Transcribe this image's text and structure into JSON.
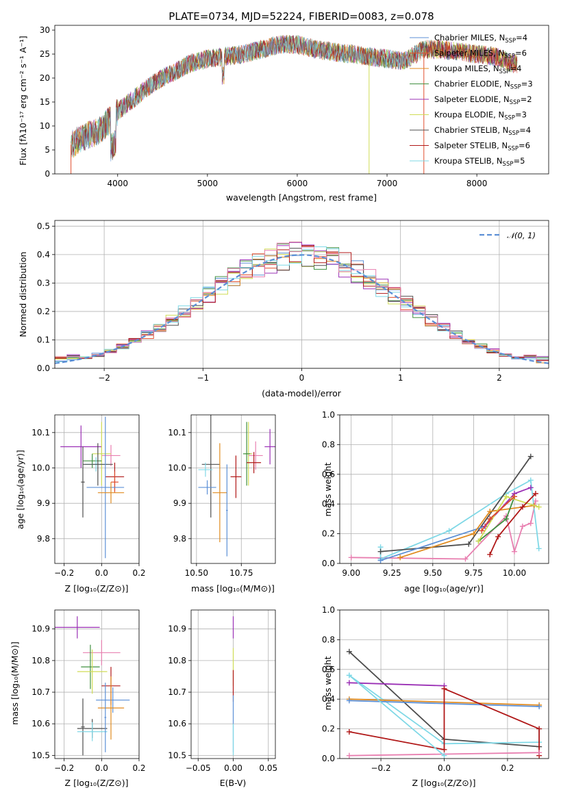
{
  "colors": {
    "chabrier_miles": "#5b8fd6",
    "salpeter_miles": "#e04e2e",
    "kroupa_miles": "#e08a1e",
    "chabrier_elodie": "#3f8f3f",
    "salpeter_elodie": "#9a2fb5",
    "kroupa_elodie": "#cfdc54",
    "chabrier_stelib": "#4d4d4d",
    "salpeter_stelib": "#b01717",
    "kroupa_stelib": "#7fd8e6",
    "pink": "#e87fb0",
    "normal": "#5b8fd6"
  },
  "chart_data": [
    {
      "id": "spectrum",
      "type": "line",
      "title": "PLATE=0734, MJD=52224, FIBERID=0083, z=0.078",
      "xlabel": "wavelength [Angstrom, rest frame]",
      "ylabel": "Flux [fλ10⁻¹⁷ erg cm⁻² s⁻¹ A⁻¹]",
      "xlim": [
        3300,
        8800
      ],
      "ylim": [
        0,
        31
      ],
      "xticks": [
        4000,
        5000,
        6000,
        7000,
        8000
      ],
      "yticks": [
        0,
        5,
        10,
        15,
        20,
        25,
        30
      ],
      "legend_position": "upper-right",
      "continuum": [
        [
          3480,
          6
        ],
        [
          3600,
          7.5
        ],
        [
          3800,
          9
        ],
        [
          4000,
          13
        ],
        [
          4200,
          16
        ],
        [
          4400,
          19
        ],
        [
          4600,
          21
        ],
        [
          4800,
          23
        ],
        [
          5000,
          24
        ],
        [
          5200,
          24.5
        ],
        [
          5400,
          25
        ],
        [
          5600,
          26
        ],
        [
          5800,
          27
        ],
        [
          6000,
          27
        ],
        [
          6200,
          26
        ],
        [
          6400,
          25.5
        ],
        [
          6600,
          25
        ],
        [
          6800,
          24.5
        ],
        [
          7000,
          24
        ],
        [
          7200,
          23.5
        ],
        [
          7400,
          26
        ],
        [
          7600,
          26
        ],
        [
          7800,
          25.5
        ],
        [
          8000,
          25
        ],
        [
          8200,
          24.5
        ],
        [
          8400,
          23
        ]
      ],
      "series": [
        {
          "name": "Chabrier MILES, N",
          "sub": "SSP",
          "suffix": "=4",
          "color_key": "chabrier_miles"
        },
        {
          "name": "Salpeter MILES, N",
          "sub": "SSP",
          "suffix": "=6",
          "color_key": "salpeter_miles"
        },
        {
          "name": "Kroupa MILES, N",
          "sub": "SSP",
          "suffix": "=4",
          "color_key": "kroupa_miles"
        },
        {
          "name": "Chabrier ELODIE, N",
          "sub": "SSP",
          "suffix": "=3",
          "color_key": "chabrier_elodie"
        },
        {
          "name": "Salpeter ELODIE, N",
          "sub": "SSP",
          "suffix": "=2",
          "color_key": "salpeter_elodie"
        },
        {
          "name": "Kroupa ELODIE, N",
          "sub": "SSP",
          "suffix": "=3",
          "color_key": "kroupa_elodie"
        },
        {
          "name": "Chabrier STELIB, N",
          "sub": "SSP",
          "suffix": "=4",
          "color_key": "chabrier_stelib"
        },
        {
          "name": "Salpeter STELIB, N",
          "sub": "SSP",
          "suffix": "=6",
          "color_key": "salpeter_stelib"
        },
        {
          "name": "Kroupa STELIB, N",
          "sub": "SSP",
          "suffix": "=5",
          "color_key": "kroupa_stelib"
        }
      ]
    },
    {
      "id": "residuals",
      "type": "histogram",
      "xlabel": "(data-model)/error",
      "ylabel": "Normed distribution",
      "xlim": [
        -2.5,
        2.5
      ],
      "ylim": [
        0,
        0.52
      ],
      "xticks": [
        -2,
        -1,
        0,
        1,
        2
      ],
      "yticks": [
        0.0,
        0.1,
        0.2,
        0.3,
        0.4,
        0.5
      ],
      "grid": true,
      "legend": "𝒩(0, 1)",
      "legend_position": "upper-right",
      "bin_width": 0.125
    },
    {
      "id": "age_vs_z",
      "type": "errorbar",
      "xlabel": "Z [log₁₀(Z/Z⊙)]",
      "ylabel": "age  [log₁₀(age/yr)]",
      "xlim": [
        -0.25,
        0.2
      ],
      "ylim": [
        9.73,
        10.15
      ],
      "xticks": [
        -0.2,
        0.0,
        0.2
      ],
      "yticks": [
        9.8,
        9.9,
        10.0,
        10.1
      ],
      "grid": true,
      "points": [
        {
          "c": "salpeter_elodie",
          "x": -0.11,
          "xe": 0.11,
          "y": 10.06,
          "ye": 0.06
        },
        {
          "c": "pink",
          "x": 0.05,
          "xe": 0.05,
          "y": 10.035,
          "ye": 0.03
        },
        {
          "c": "kroupa_elodie",
          "x": 0.0,
          "xe": 0.05,
          "y": 10.04,
          "ye": 0.09
        },
        {
          "c": "chabrier_elodie",
          "x": -0.05,
          "xe": 0.05,
          "y": 10.02,
          "ye": 0.02
        },
        {
          "c": "kroupa_stelib",
          "x": -0.03,
          "xe": 0.06,
          "y": 10.01,
          "ye": 0.02
        },
        {
          "c": "chabrier_stelib",
          "x": -0.02,
          "xe": 0.08,
          "y": 10.01,
          "ye": 0.06
        },
        {
          "c": "chabrier_stelib",
          "x": -0.1,
          "xe": 0.01,
          "y": 9.96,
          "ye": 0.1
        },
        {
          "c": "salpeter_stelib",
          "x": 0.07,
          "xe": 0.05,
          "y": 9.975,
          "ye": 0.04
        },
        {
          "c": "salpeter_miles",
          "x": 0.07,
          "xe": 0.02,
          "y": 9.96,
          "ye": 0.03
        },
        {
          "c": "chabrier_miles",
          "x": 0.02,
          "xe": 0.1,
          "y": 9.945,
          "ye": 0.2
        },
        {
          "c": "kroupa_miles",
          "x": 0.05,
          "xe": 0.07,
          "y": 9.93,
          "ye": 0.03
        }
      ]
    },
    {
      "id": "age_vs_mass",
      "type": "errorbar",
      "xlabel": "mass [log₁₀(M/M⊙)]",
      "xlim": [
        10.47,
        10.94
      ],
      "ylim": [
        9.73,
        10.15
      ],
      "xticks": [
        10.5,
        10.75
      ],
      "yticks": [
        9.8,
        9.9,
        10.0,
        10.1
      ],
      "grid": true,
      "points": [
        {
          "c": "salpeter_elodie",
          "x": 10.91,
          "xe": 0.03,
          "y": 10.06,
          "ye": 0.05
        },
        {
          "c": "kroupa_elodie",
          "x": 10.79,
          "xe": 0.02,
          "y": 10.04,
          "ye": 0.09
        },
        {
          "c": "chabrier_elodie",
          "x": 10.78,
          "xe": 0.02,
          "y": 10.04,
          "ye": 0.09
        },
        {
          "c": "pink",
          "x": 10.83,
          "xe": 0.04,
          "y": 10.035,
          "ye": 0.04
        },
        {
          "c": "salpeter_stelib",
          "x": 10.82,
          "xe": 0.04,
          "y": 10.015,
          "ye": 0.03
        },
        {
          "c": "chabrier_stelib",
          "x": 10.58,
          "xe": 0.05,
          "y": 10.01,
          "ye": 0.15
        },
        {
          "c": "kroupa_stelib",
          "x": 10.55,
          "xe": 0.04,
          "y": 9.995,
          "ye": 0.02
        },
        {
          "c": "salpeter_stelib",
          "x": 10.72,
          "xe": 0.03,
          "y": 9.975,
          "ye": 0.06
        },
        {
          "c": "chabrier_miles",
          "x": 10.56,
          "xe": 0.05,
          "y": 9.945,
          "ye": 0.02
        },
        {
          "c": "kroupa_miles",
          "x": 10.63,
          "xe": 0.04,
          "y": 9.93,
          "ye": 0.14
        },
        {
          "c": "chabrier_miles",
          "x": 10.67,
          "xe": 0.005,
          "y": 9.88,
          "ye": 0.13
        }
      ]
    },
    {
      "id": "weight_vs_age",
      "type": "line",
      "xlabel": "age  [log₁₀(age/yr)]",
      "ylabel": "mass weight",
      "xlim": [
        8.93,
        10.21
      ],
      "ylim": [
        0,
        1.0
      ],
      "xticks": [
        9.0,
        9.25,
        9.5,
        9.75,
        10.0
      ],
      "yticks": [
        0.0,
        0.2,
        0.4,
        0.6,
        0.8,
        1.0
      ],
      "grid": true,
      "series": [
        {
          "c": "pink",
          "pts": [
            [
              9.0,
              0.04
            ],
            [
              9.7,
              0.03
            ],
            [
              9.95,
              0.32
            ],
            [
              10.0,
              0.08
            ],
            [
              10.05,
              0.25
            ],
            [
              10.1,
              0.27
            ],
            [
              10.13,
              0.42
            ]
          ]
        },
        {
          "c": "kroupa_stelib",
          "pts": [
            [
              9.18,
              0.11
            ],
            [
              9.18,
              0.03
            ],
            [
              9.6,
              0.22
            ],
            [
              9.95,
              0.47
            ],
            [
              10.1,
              0.56
            ],
            [
              10.15,
              0.1
            ]
          ]
        },
        {
          "c": "chabrier_stelib",
          "pts": [
            [
              9.18,
              0.08
            ],
            [
              9.72,
              0.13
            ],
            [
              10.1,
              0.72
            ]
          ]
        },
        {
          "c": "chabrier_miles",
          "pts": [
            [
              9.18,
              0.02
            ],
            [
              9.82,
              0.25
            ],
            [
              9.85,
              0.3
            ],
            [
              10.0,
              0.45
            ]
          ]
        },
        {
          "c": "kroupa_miles",
          "pts": [
            [
              9.3,
              0.04
            ],
            [
              9.75,
              0.2
            ],
            [
              9.85,
              0.35
            ],
            [
              10.12,
              0.39
            ]
          ]
        },
        {
          "c": "salpeter_elodie",
          "pts": [
            [
              9.82,
              0.25
            ],
            [
              10.0,
              0.47
            ],
            [
              10.1,
              0.51
            ]
          ]
        },
        {
          "c": "chabrier_elodie",
          "pts": [
            [
              9.78,
              0.15
            ],
            [
              9.95,
              0.3
            ],
            [
              10.0,
              0.45
            ]
          ]
        },
        {
          "c": "kroupa_elodie",
          "pts": [
            [
              9.78,
              0.15
            ],
            [
              9.95,
              0.45
            ],
            [
              10.15,
              0.38
            ]
          ]
        },
        {
          "c": "salpeter_stelib",
          "pts": [
            [
              9.85,
              0.06
            ],
            [
              9.9,
              0.18
            ],
            [
              10.05,
              0.38
            ],
            [
              10.13,
              0.47
            ]
          ]
        },
        {
          "c": "salpeter_miles",
          "pts": [
            [
              9.8,
              0.22
            ],
            [
              9.85,
              0.3
            ],
            [
              10.0,
              0.45
            ]
          ]
        }
      ]
    },
    {
      "id": "mass_vs_z",
      "type": "errorbar",
      "xlabel": "Z [log₁₀(Z/Z⊙)]",
      "ylabel": "mass [log₁₀(M/M⊙)]",
      "xlim": [
        -0.25,
        0.2
      ],
      "ylim": [
        10.49,
        10.96
      ],
      "xticks": [
        -0.2,
        0.0,
        0.2
      ],
      "yticks": [
        10.5,
        10.6,
        10.7,
        10.8,
        10.9
      ],
      "grid": true,
      "points": [
        {
          "c": "salpeter_elodie",
          "x": -0.13,
          "xe": 0.12,
          "y": 10.905,
          "ye": 0.035
        },
        {
          "c": "pink",
          "x": 0.0,
          "xe": 0.1,
          "y": 10.825,
          "ye": 0.04
        },
        {
          "c": "chabrier_elodie",
          "x": -0.06,
          "xe": 0.05,
          "y": 10.78,
          "ye": 0.07
        },
        {
          "c": "kroupa_elodie",
          "x": -0.05,
          "xe": 0.08,
          "y": 10.765,
          "ye": 0.07
        },
        {
          "c": "salpeter_stelib",
          "x": 0.05,
          "xe": 0.05,
          "y": 10.72,
          "ye": 0.06
        },
        {
          "c": "chabrier_miles",
          "x": 0.06,
          "xe": 0.09,
          "y": 10.675,
          "ye": 0.04
        },
        {
          "c": "kroupa_miles",
          "x": 0.05,
          "xe": 0.07,
          "y": 10.65,
          "ye": 0.1
        },
        {
          "c": "chabrier_stelib",
          "x": -0.1,
          "xe": 0.01,
          "y": 10.59,
          "ye": 0.09
        },
        {
          "c": "chabrier_stelib",
          "x": -0.05,
          "xe": 0.08,
          "y": 10.585,
          "ye": 0.03
        },
        {
          "c": "kroupa_stelib",
          "x": -0.05,
          "xe": 0.08,
          "y": 10.575,
          "ye": 0.03
        },
        {
          "c": "chabrier_miles",
          "x": 0.02,
          "xe": 0.005,
          "y": 10.62,
          "ye": 0.11
        }
      ]
    },
    {
      "id": "mass_vs_ebv",
      "type": "errorbar",
      "xlabel": "E(B-V)",
      "xlim": [
        -0.06,
        0.06
      ],
      "ylim": [
        10.49,
        10.96
      ],
      "xticks": [
        -0.05,
        0.0,
        0.05
      ],
      "yticks": [
        10.5,
        10.6,
        10.7,
        10.8,
        10.9
      ],
      "grid": true,
      "points": [
        {
          "c": "salpeter_elodie",
          "x": 0.0,
          "xe": 0.0,
          "y": 10.905,
          "ye": 0.035
        },
        {
          "c": "kroupa_elodie",
          "x": 0.0,
          "xe": 0.0,
          "y": 10.78,
          "ye": 0.06
        },
        {
          "c": "salpeter_stelib",
          "x": 0.0,
          "xe": 0.0,
          "y": 10.72,
          "ye": 0.05
        },
        {
          "c": "chabrier_miles",
          "x": 0.0,
          "xe": 0.0,
          "y": 10.6,
          "ye": 0.09
        },
        {
          "c": "kroupa_stelib",
          "x": 0.0,
          "xe": 0.0,
          "y": 10.55,
          "ye": 0.05
        }
      ]
    },
    {
      "id": "weight_vs_z",
      "type": "line",
      "xlabel": "Z [log₁₀(Z/Z⊙)]",
      "ylabel": "mass weight",
      "xlim": [
        -0.33,
        0.33
      ],
      "ylim": [
        0,
        1.0
      ],
      "xticks": [
        -0.2,
        0.0,
        0.2
      ],
      "yticks": [
        0.0,
        0.2,
        0.4,
        0.6,
        0.8,
        1.0
      ],
      "grid": true,
      "series": [
        {
          "c": "chabrier_stelib",
          "pts": [
            [
              -0.3,
              0.72
            ],
            [
              0.0,
              0.13
            ],
            [
              0.3,
              0.08
            ]
          ]
        },
        {
          "c": "kroupa_stelib",
          "pts": [
            [
              -0.3,
              0.56
            ],
            [
              0.0,
              0.1
            ],
            [
              0.3,
              0.11
            ],
            [
              0.3,
              0.2
            ]
          ]
        },
        {
          "c": "salpeter_elodie",
          "pts": [
            [
              -0.3,
              0.51
            ],
            [
              0.0,
              0.49
            ]
          ]
        },
        {
          "c": "kroupa_miles",
          "pts": [
            [
              -0.3,
              0.4
            ],
            [
              0.3,
              0.36
            ]
          ]
        },
        {
          "c": "chabrier_miles",
          "pts": [
            [
              -0.3,
              0.39
            ],
            [
              0.3,
              0.35
            ]
          ]
        },
        {
          "c": "salpeter_stelib",
          "pts": [
            [
              -0.3,
              0.18
            ],
            [
              0.0,
              0.06
            ],
            [
              0.0,
              0.47
            ],
            [
              0.3,
              0.2
            ],
            [
              0.3,
              0.02
            ]
          ]
        },
        {
          "c": "pink",
          "pts": [
            [
              -0.3,
              0.02
            ],
            [
              0.3,
              0.04
            ]
          ]
        },
        {
          "c": "kroupa_stelib",
          "pts": [
            [
              -0.3,
              0.56
            ],
            [
              0.0,
              0.02
            ]
          ]
        }
      ]
    }
  ]
}
